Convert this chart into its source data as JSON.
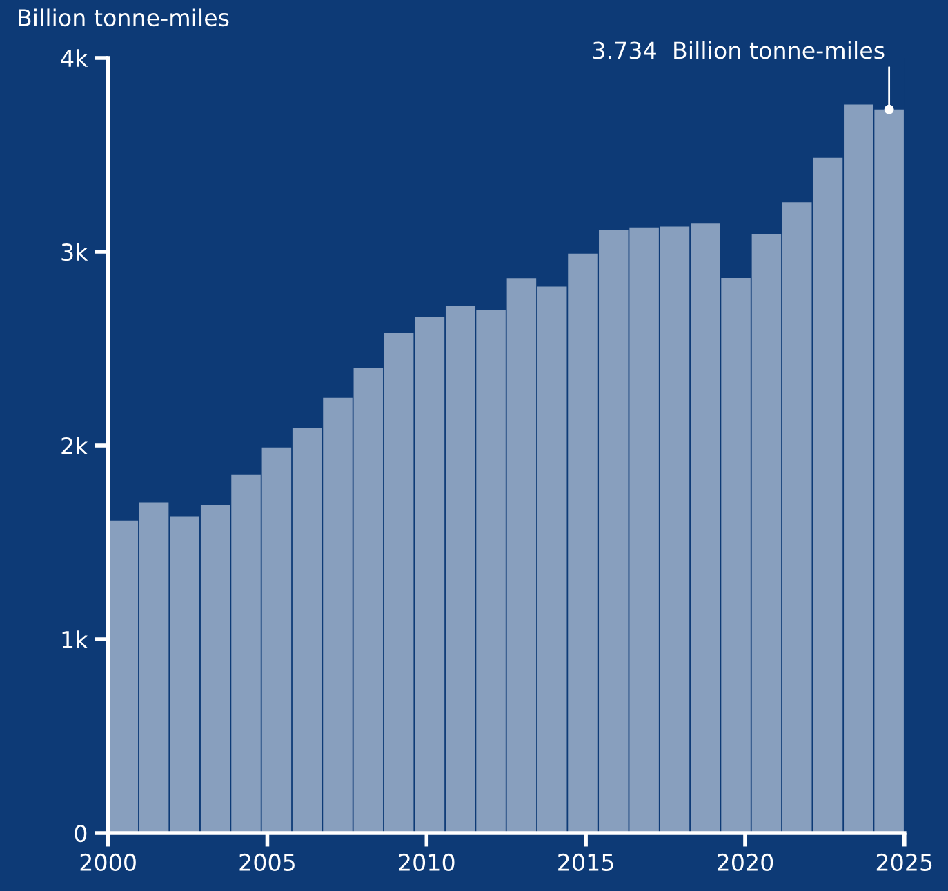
{
  "chart_data": {
    "type": "bar",
    "ylabel": "Billion tonne-miles",
    "x": [
      2000.48,
      2001.44,
      2002.4,
      2003.37,
      2004.33,
      2005.29,
      2006.25,
      2007.21,
      2008.17,
      2009.13,
      2010.1,
      2011.06,
      2012.02,
      2012.98,
      2013.94,
      2014.9,
      2015.87,
      2016.83,
      2017.79,
      2018.75,
      2019.71,
      2020.67,
      2021.63,
      2022.6,
      2023.56,
      2024.52
    ],
    "values": [
      1613,
      1706,
      1635,
      1692,
      1848,
      1990,
      2089,
      2246,
      2402,
      2580,
      2665,
      2722,
      2701,
      2864,
      2820,
      2990,
      3110,
      3125,
      3130,
      3145,
      2865,
      3090,
      3255,
      3485,
      3760,
      3734
    ],
    "color": "#889fbe",
    "xlim": [
      2000,
      2025
    ],
    "xticks": [
      2000,
      2005,
      2010,
      2015,
      2020,
      2025
    ],
    "ylim": [
      0,
      4000
    ],
    "yticks": [
      {
        "value": 0,
        "label": "0"
      },
      {
        "value": 1000,
        "label": "1k"
      },
      {
        "value": 2000,
        "label": "2k"
      },
      {
        "value": 3000,
        "label": "3k"
      },
      {
        "value": 4000,
        "label": "4k"
      }
    ],
    "annotations": [
      {
        "text": "3.734  Billion tonne-miles",
        "x": 2024.52,
        "y": 3734
      }
    ],
    "grid": false
  }
}
